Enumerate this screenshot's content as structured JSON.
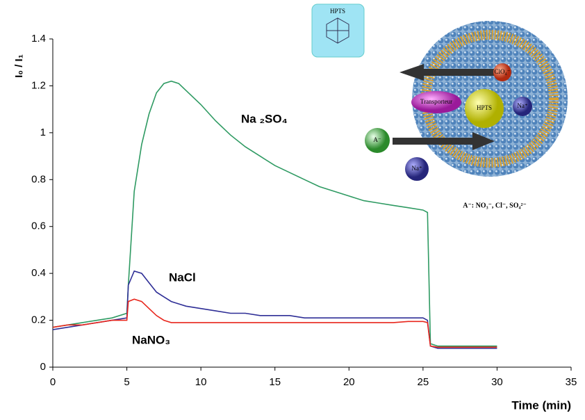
{
  "chart_data": {
    "type": "line",
    "x_label": "Time (min)",
    "y_label": "I₀ / I₁",
    "x": [
      0,
      1,
      2,
      3,
      4,
      5,
      5.1,
      5.5,
      6,
      6.5,
      7,
      7.5,
      8,
      8.5,
      9,
      10,
      11,
      12,
      13,
      14,
      15,
      16,
      17,
      18,
      19,
      20,
      21,
      22,
      23,
      24,
      25,
      25.3,
      25.5,
      26,
      27,
      28,
      29,
      30
    ],
    "series": [
      {
        "name": "Na ₂SO₄",
        "color": "#2e9a62",
        "values": [
          0.17,
          0.18,
          0.19,
          0.2,
          0.21,
          0.23,
          0.35,
          0.75,
          0.95,
          1.08,
          1.17,
          1.21,
          1.22,
          1.21,
          1.18,
          1.12,
          1.05,
          0.99,
          0.94,
          0.9,
          0.86,
          0.83,
          0.8,
          0.77,
          0.75,
          0.73,
          0.71,
          0.7,
          0.69,
          0.68,
          0.67,
          0.66,
          0.1,
          0.09,
          0.09,
          0.09,
          0.09,
          0.09
        ]
      },
      {
        "name": "NaCl",
        "color": "#2e2e96",
        "values": [
          0.16,
          0.17,
          0.18,
          0.19,
          0.2,
          0.21,
          0.35,
          0.41,
          0.4,
          0.36,
          0.32,
          0.3,
          0.28,
          0.27,
          0.26,
          0.25,
          0.24,
          0.23,
          0.23,
          0.22,
          0.22,
          0.22,
          0.21,
          0.21,
          0.21,
          0.21,
          0.21,
          0.21,
          0.21,
          0.21,
          0.21,
          0.2,
          0.09,
          0.08,
          0.08,
          0.08,
          0.08,
          0.08
        ]
      },
      {
        "name": "NaNO₃",
        "color": "#e8261c",
        "values": [
          0.17,
          0.18,
          0.18,
          0.19,
          0.2,
          0.2,
          0.28,
          0.29,
          0.28,
          0.25,
          0.22,
          0.2,
          0.19,
          0.19,
          0.19,
          0.19,
          0.19,
          0.19,
          0.19,
          0.19,
          0.19,
          0.19,
          0.19,
          0.19,
          0.19,
          0.19,
          0.19,
          0.19,
          0.19,
          0.195,
          0.195,
          0.19,
          0.09,
          0.085,
          0.085,
          0.085,
          0.085,
          0.085
        ]
      }
    ],
    "xlim": [
      0,
      35
    ],
    "xticks": [
      0,
      5,
      10,
      15,
      20,
      25,
      30,
      35
    ],
    "ylim": [
      0,
      1.4
    ],
    "yticks": [
      0,
      0.2,
      0.4,
      0.6,
      0.8,
      1,
      1.2,
      1.4
    ],
    "grid": false
  },
  "illustration": {
    "structure_title": "HPTS",
    "transporter": "Transporteur",
    "dye": "HPTS",
    "inner_anion": "ClO₄⁻",
    "inner_cation": "Na⁺",
    "outer_anion": "A⁻",
    "outer_cation": "Na⁺",
    "caption": "A⁻: NO₃⁻, Cl⁻, SO₄²⁻"
  }
}
